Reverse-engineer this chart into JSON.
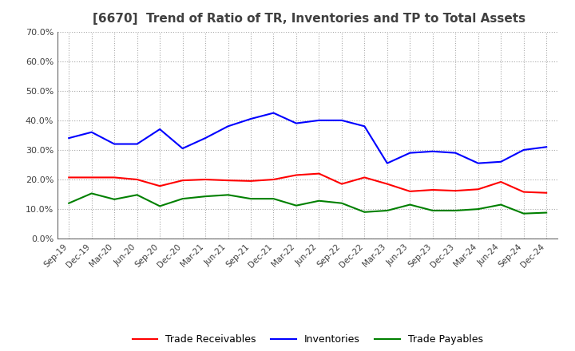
{
  "title": "[6670]  Trend of Ratio of TR, Inventories and TP to Total Assets",
  "x_labels": [
    "Sep-19",
    "Dec-19",
    "Mar-20",
    "Jun-20",
    "Sep-20",
    "Dec-20",
    "Mar-21",
    "Jun-21",
    "Sep-21",
    "Dec-21",
    "Mar-22",
    "Jun-22",
    "Sep-22",
    "Dec-22",
    "Mar-23",
    "Jun-23",
    "Sep-23",
    "Dec-23",
    "Mar-24",
    "Jun-24",
    "Sep-24",
    "Dec-24"
  ],
  "trade_receivables": [
    0.207,
    0.207,
    0.207,
    0.2,
    0.178,
    0.197,
    0.2,
    0.197,
    0.195,
    0.2,
    0.215,
    0.22,
    0.185,
    0.207,
    0.185,
    0.16,
    0.165,
    0.162,
    0.167,
    0.192,
    0.158,
    0.155
  ],
  "inventories": [
    0.34,
    0.36,
    0.32,
    0.32,
    0.37,
    0.305,
    0.34,
    0.38,
    0.405,
    0.425,
    0.39,
    0.4,
    0.4,
    0.38,
    0.255,
    0.29,
    0.295,
    0.29,
    0.255,
    0.26,
    0.3,
    0.31
  ],
  "trade_payables": [
    0.12,
    0.153,
    0.133,
    0.148,
    0.11,
    0.135,
    0.143,
    0.148,
    0.135,
    0.135,
    0.112,
    0.128,
    0.12,
    0.09,
    0.095,
    0.115,
    0.095,
    0.095,
    0.1,
    0.115,
    0.085,
    0.088
  ],
  "tr_color": "#ff0000",
  "inv_color": "#0000ff",
  "tp_color": "#008000",
  "ylim": [
    0.0,
    0.7
  ],
  "yticks": [
    0.0,
    0.1,
    0.2,
    0.3,
    0.4,
    0.5,
    0.6,
    0.7
  ],
  "bg_color": "#ffffff",
  "grid_color": "#aaaaaa",
  "title_color": "#404040",
  "tick_color": "#404040"
}
